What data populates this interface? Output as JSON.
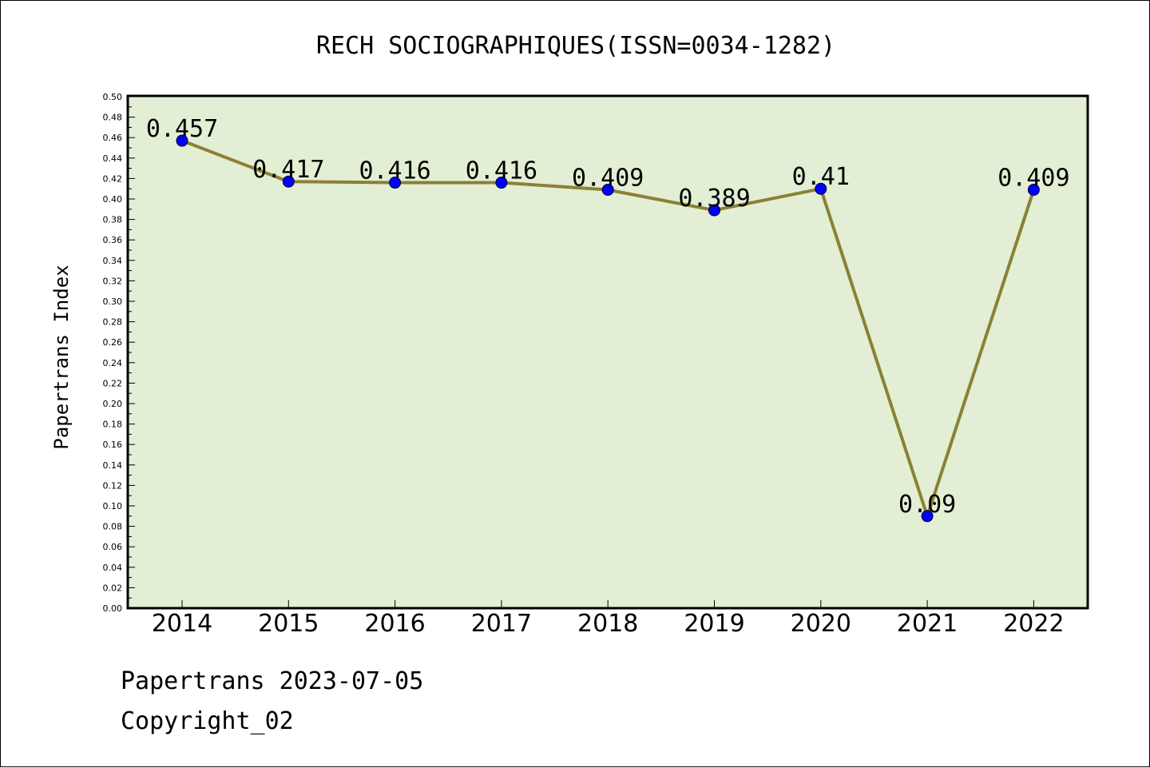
{
  "chart_data": {
    "type": "line",
    "title": "RECH SOCIOGRAPHIQUES(ISSN=0034-1282)",
    "xlabel": "",
    "ylabel": "Papertrans Index",
    "categories": [
      "2014",
      "2015",
      "2016",
      "2017",
      "2018",
      "2019",
      "2020",
      "2021",
      "2022"
    ],
    "values": [
      0.457,
      0.417,
      0.416,
      0.416,
      0.409,
      0.389,
      0.41,
      0.09,
      0.409
    ],
    "data_labels": [
      "0.457",
      "0.417",
      "0.416",
      "0.416",
      "0.409",
      "0.389",
      "0.41",
      "0.09",
      "0.409"
    ],
    "ylim": [
      0,
      0.5
    ],
    "y_ticks": [
      "0.00",
      "0.02",
      "0.04",
      "0.06",
      "0.08",
      "0.10",
      "0.12",
      "0.14",
      "0.16",
      "0.18",
      "0.20",
      "0.22",
      "0.24",
      "0.26",
      "0.28",
      "0.30",
      "0.32",
      "0.34",
      "0.36",
      "0.38",
      "0.40",
      "0.42",
      "0.44",
      "0.46",
      "0.48",
      "0.50"
    ],
    "grid": false,
    "colors": {
      "plot_background": "#e2efd4",
      "line": "#8b8035",
      "marker": "#0000ff"
    }
  },
  "footer": {
    "line1": "Papertrans 2023-07-05",
    "line2": "Copyright_02"
  }
}
